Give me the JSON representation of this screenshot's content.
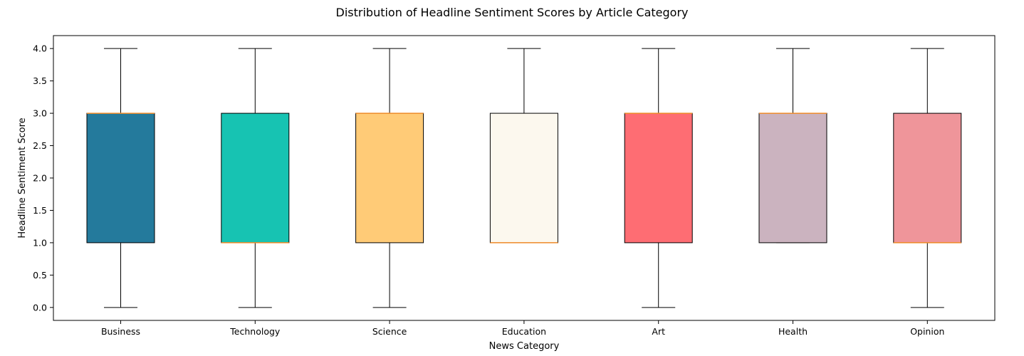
{
  "chart_data": {
    "type": "box",
    "title": "Distribution of Headline Sentiment Scores by Article Category",
    "xlabel": "News Category",
    "ylabel": "Headline Sentiment Score",
    "ylim": [
      -0.2,
      4.2
    ],
    "yticks": [
      "0.0",
      "0.5",
      "1.0",
      "1.5",
      "2.0",
      "2.5",
      "3.0",
      "3.5",
      "4.0"
    ],
    "grid": false,
    "median_color": "#f28e2b",
    "categories": [
      "Business",
      "Technology",
      "Science",
      "Education",
      "Art",
      "Health",
      "Opinion"
    ],
    "series": [
      {
        "name": "Business",
        "whisker_low": 0,
        "q1": 1,
        "median": 3,
        "q3": 3,
        "whisker_high": 4,
        "color": "#247a9c"
      },
      {
        "name": "Technology",
        "whisker_low": 0,
        "q1": 1,
        "median": 1,
        "q3": 3,
        "whisker_high": 4,
        "color": "#17c3b2"
      },
      {
        "name": "Science",
        "whisker_low": 0,
        "q1": 1,
        "median": 3,
        "q3": 3,
        "whisker_high": 4,
        "color": "#ffcb77"
      },
      {
        "name": "Education",
        "whisker_low": 1,
        "q1": 1,
        "median": 1,
        "q3": 3,
        "whisker_high": 4,
        "color": "#fcf8ee"
      },
      {
        "name": "Art",
        "whisker_low": 0,
        "q1": 1,
        "median": 3,
        "q3": 3,
        "whisker_high": 4,
        "color": "#fe6d73"
      },
      {
        "name": "Health",
        "whisker_low": 1,
        "q1": 1,
        "median": 3,
        "q3": 3,
        "whisker_high": 4,
        "color": "#cbb3bf"
      },
      {
        "name": "Opinion",
        "whisker_low": 0,
        "q1": 1,
        "median": 1,
        "q3": 3,
        "whisker_high": 4,
        "color": "#ef959a"
      }
    ]
  }
}
